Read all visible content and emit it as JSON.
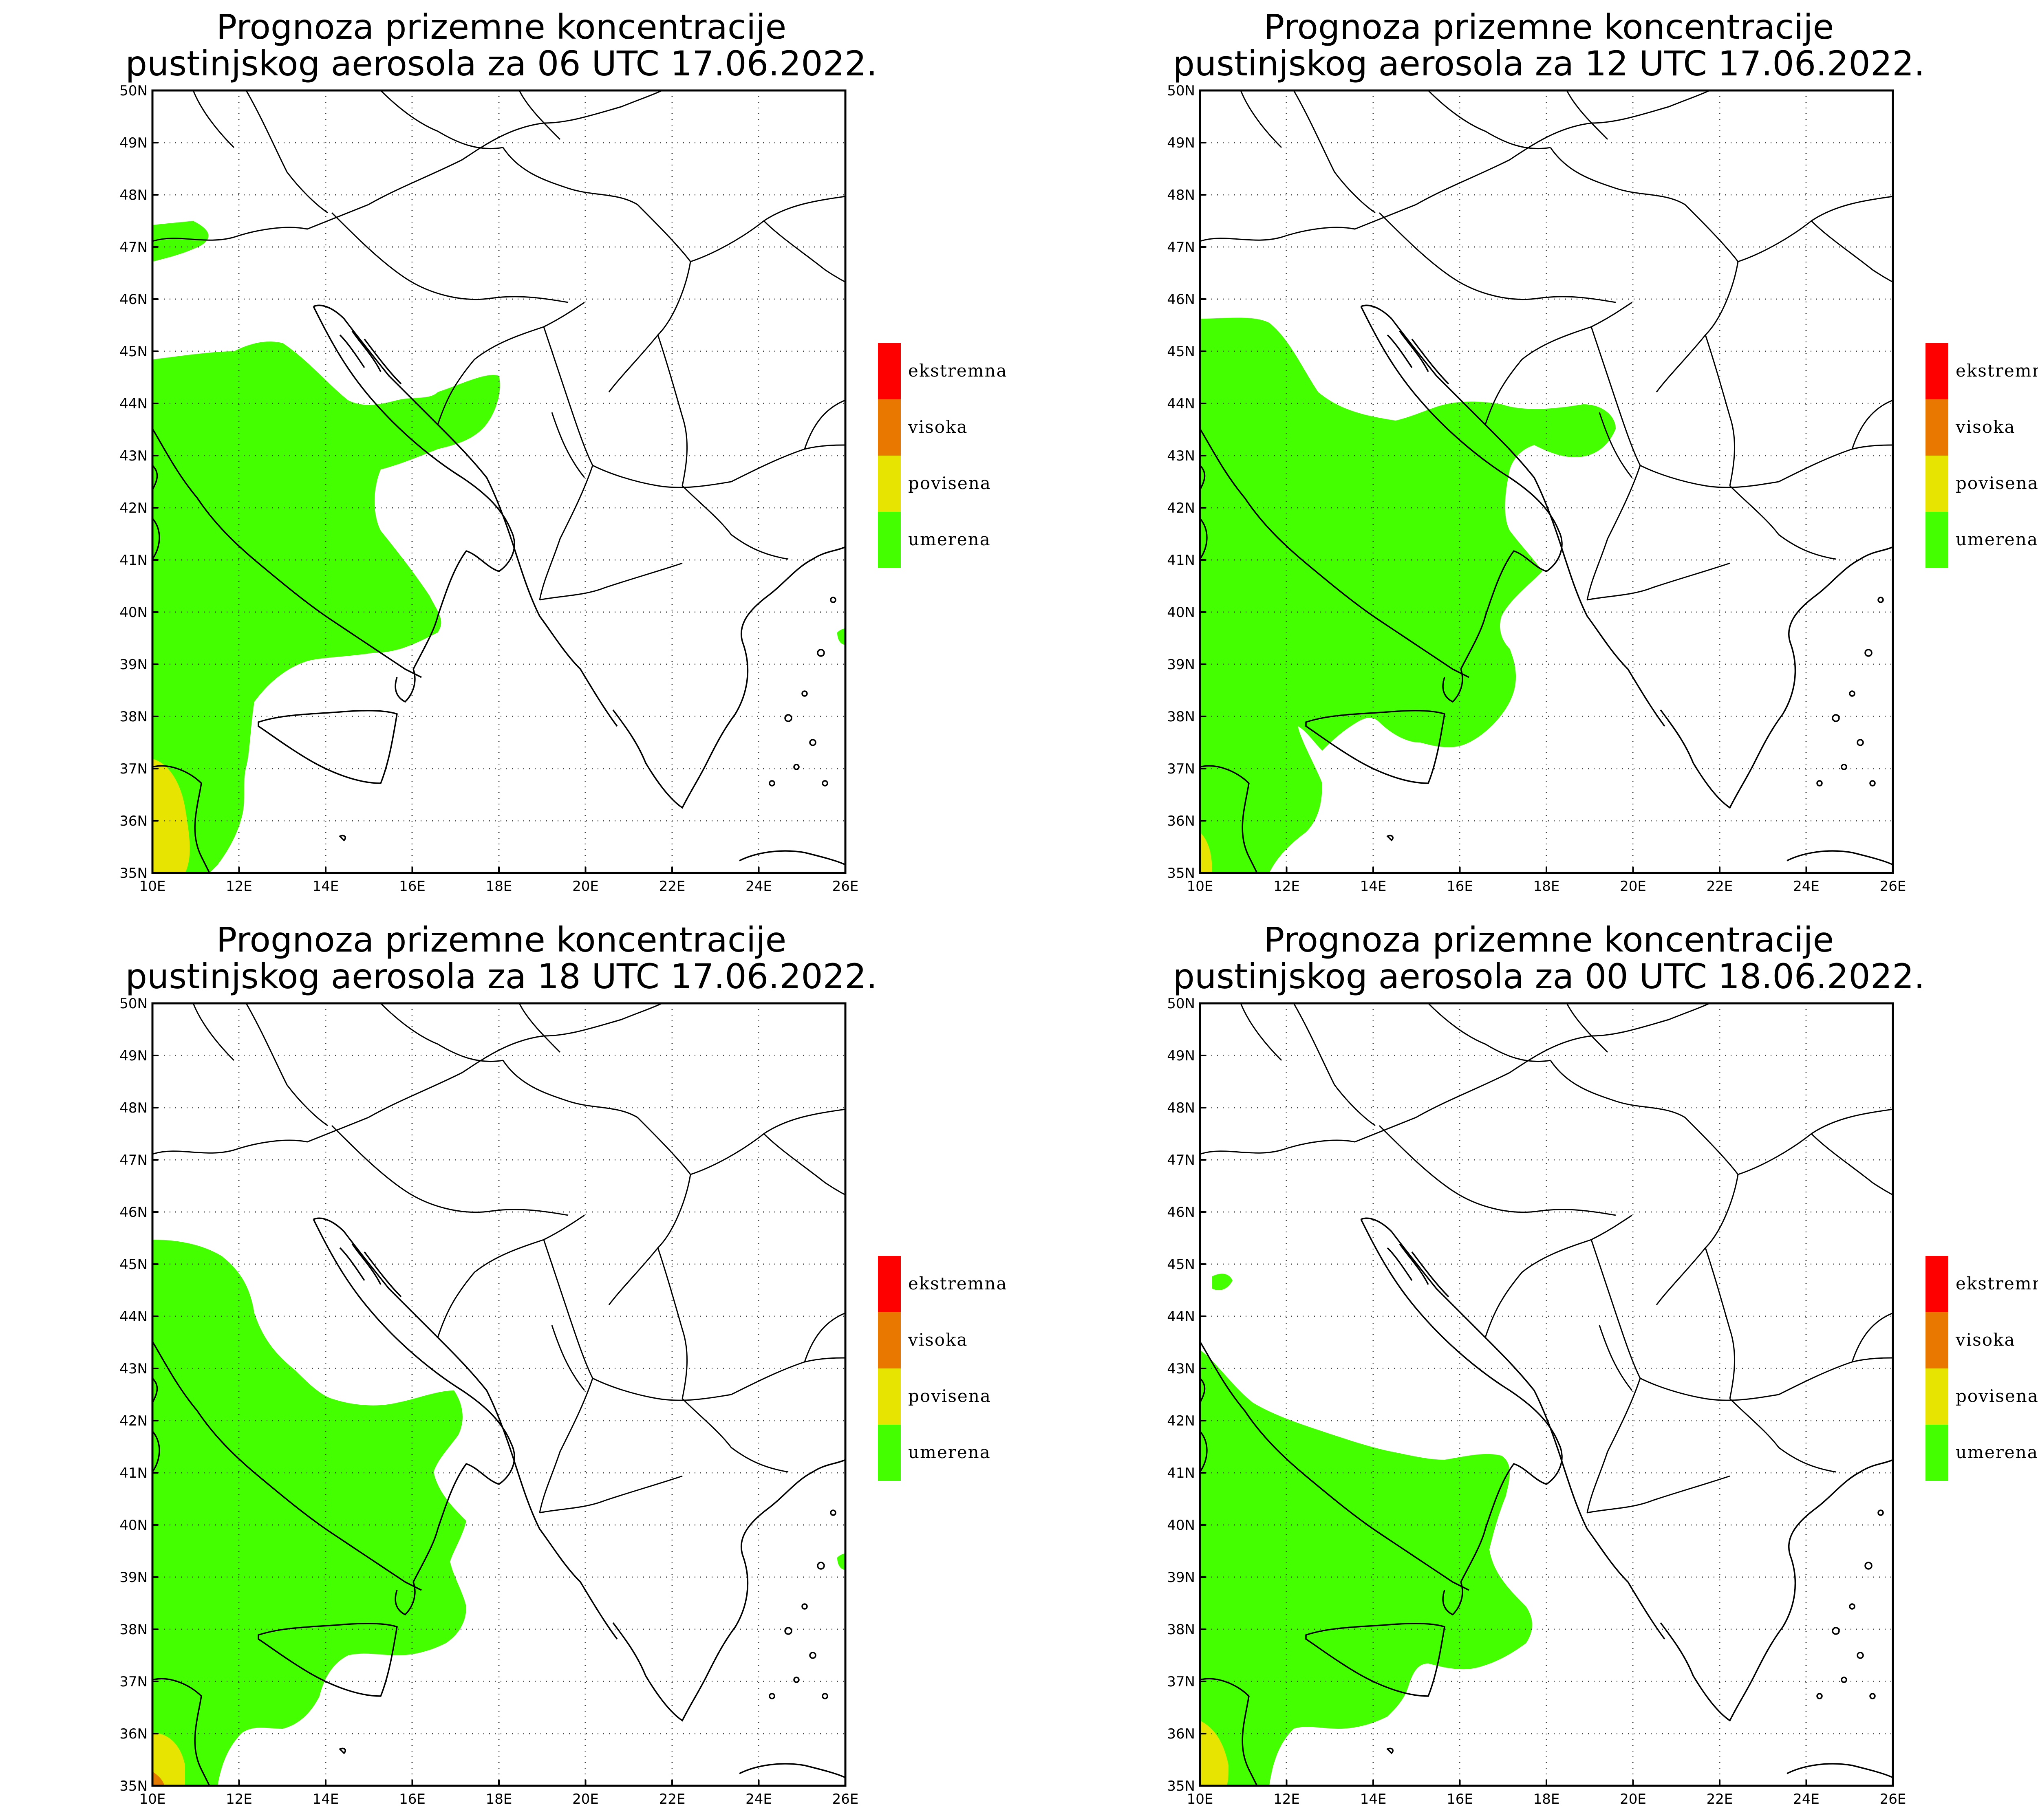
{
  "colors": {
    "ekstremna": "#ff0000",
    "visoka": "#e87800",
    "povisena": "#e6e400",
    "umerena": "#44ff00"
  },
  "lon_ticks": [
    "10E",
    "12E",
    "14E",
    "16E",
    "18E",
    "20E",
    "22E",
    "24E",
    "26E"
  ],
  "lat_ticks": [
    "35N",
    "36N",
    "37N",
    "38N",
    "39N",
    "40N",
    "41N",
    "42N",
    "43N",
    "44N",
    "45N",
    "46N",
    "47N",
    "48N",
    "49N",
    "50N"
  ],
  "legend": [
    {
      "key": "ekstremna",
      "label": "ekstremna"
    },
    {
      "key": "visoka",
      "label": "visoka"
    },
    {
      "key": "povisena",
      "label": "povisena"
    },
    {
      "key": "umerena",
      "label": "umerena"
    }
  ],
  "panels": [
    {
      "id": "p0",
      "title_line1": "Prognoza prizemne koncentracije",
      "title_line2": "pustinjskog aerosola za 06 UTC 17.06.2022."
    },
    {
      "id": "p1",
      "title_line1": "Prognoza prizemne koncentracije",
      "title_line2": "pustinjskog aerosola za 12 UTC 17.06.2022."
    },
    {
      "id": "p2",
      "title_line1": "Prognoza prizemne koncentracije",
      "title_line2": "pustinjskog aerosola za 18 UTC 17.06.2022."
    },
    {
      "id": "p3",
      "title_line1": "Prognoza prizemne koncentracije",
      "title_line2": "pustinjskog aerosola za 00 UTC 18.06.2022."
    }
  ]
}
